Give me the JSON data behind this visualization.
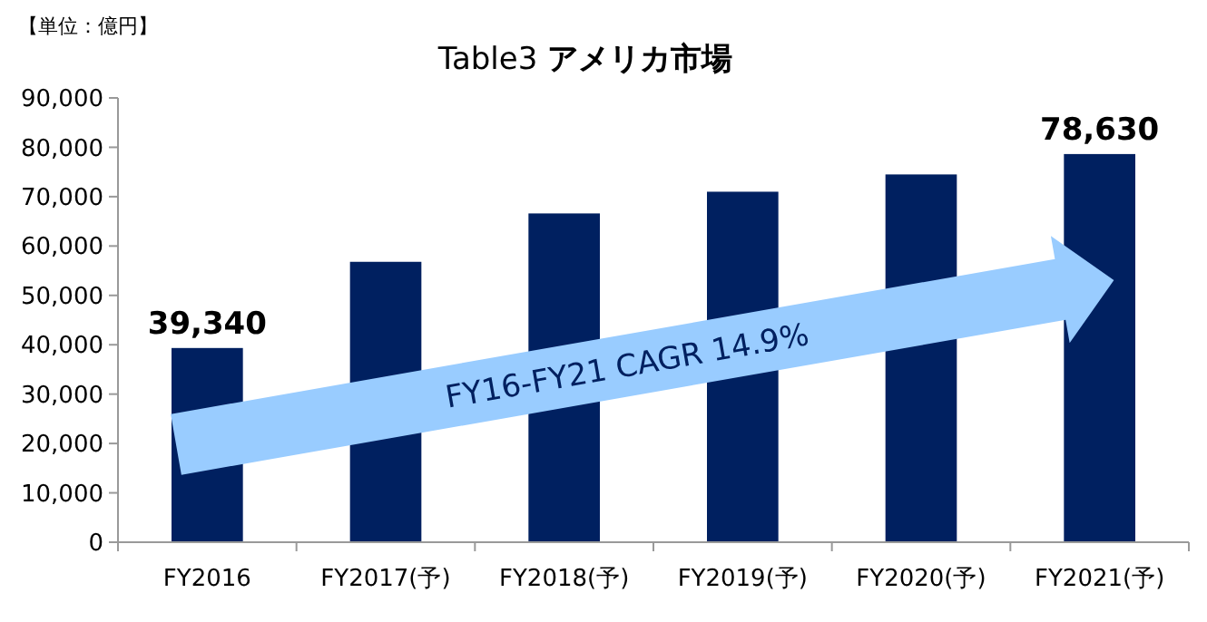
{
  "chart_data": {
    "type": "bar",
    "title": "Table3 アメリカ市場",
    "ylabel": "【単位：億円】",
    "categories": [
      "FY2016",
      "FY2017(予)",
      "FY2018(予)",
      "FY2019(予)",
      "FY2020(予)",
      "FY2021(予)"
    ],
    "values": [
      39340,
      56800,
      66600,
      71000,
      74500,
      78630
    ],
    "value_labels": [
      "39,340",
      null,
      null,
      null,
      null,
      "78,630"
    ],
    "color": "#002060",
    "ylim": [
      0,
      90000
    ],
    "yticks": [
      {
        "value": 0,
        "label": "0"
      },
      {
        "value": 10000,
        "label": "10,000"
      },
      {
        "value": 20000,
        "label": "20,000"
      },
      {
        "value": 30000,
        "label": "30,000"
      },
      {
        "value": 40000,
        "label": "40,000"
      },
      {
        "value": 50000,
        "label": "50,000"
      },
      {
        "value": 60000,
        "label": "60,000"
      },
      {
        "value": 70000,
        "label": "70,000"
      },
      {
        "value": 80000,
        "label": "80,000"
      },
      {
        "value": 90000,
        "label": "90,000"
      }
    ],
    "grid": false,
    "annotations": [
      "FY16-FY21 CAGR 14.9%"
    ]
  }
}
